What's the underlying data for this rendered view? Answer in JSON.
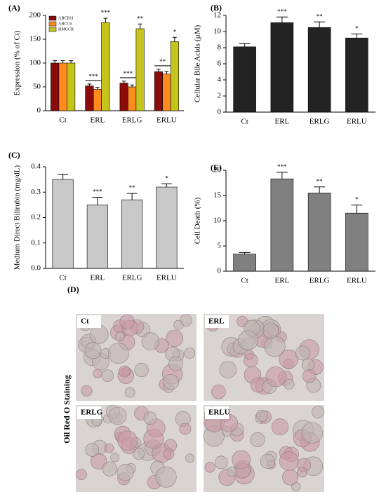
{
  "chart_data": [
    {
      "type": "bar",
      "title": "(A)",
      "ylabel": "Expression (% of Ct)",
      "categories": [
        "Ct",
        "ERL",
        "ERLG",
        "ERLU"
      ],
      "series": [
        {
          "name": "ABCB11",
          "color": "#8b0a0a",
          "values": [
            100,
            52,
            58,
            82
          ],
          "errors": [
            5,
            4,
            4,
            5
          ],
          "stars": [
            null,
            "***",
            "***",
            "**"
          ]
        },
        {
          "name": "ABCC6",
          "color": "#ff8a1e",
          "values": [
            100,
            45,
            50,
            77
          ],
          "errors": [
            5,
            4,
            4,
            5
          ]
        },
        {
          "name": "HMGCR",
          "color": "#c4c41c",
          "values": [
            100,
            185,
            172,
            145
          ],
          "errors": [
            5,
            9,
            10,
            9
          ],
          "stars": [
            null,
            "***",
            "**",
            "*"
          ]
        }
      ],
      "ylim": [
        0,
        200
      ],
      "yticks": [
        0,
        50,
        100,
        150,
        200
      ]
    },
    {
      "type": "bar",
      "title": "(B)",
      "ylabel": "Cellular Bile Acids (µM)",
      "categories": [
        "Ct",
        "ERL",
        "ERLG",
        "ERLU"
      ],
      "series": [
        {
          "color": "#232323",
          "values": [
            8.1,
            11.1,
            10.5,
            9.2
          ],
          "errors": [
            0.4,
            0.7,
            0.7,
            0.5
          ],
          "stars": [
            null,
            "***",
            "**",
            "*"
          ]
        }
      ],
      "ylim": [
        0,
        12
      ],
      "yticks": [
        0,
        2,
        4,
        6,
        8,
        10,
        12
      ]
    },
    {
      "type": "bar",
      "title": "(C)",
      "ylabel": "Medium Direct Bilirubin (mg/dL)",
      "categories": [
        "Ct",
        "ERL",
        "ERLG",
        "ERLU"
      ],
      "series": [
        {
          "color": "#c8c8c8",
          "values": [
            0.35,
            0.25,
            0.27,
            0.32
          ],
          "errors": [
            0.02,
            0.03,
            0.025,
            0.013
          ],
          "stars": [
            null,
            "***",
            "**",
            "*"
          ]
        }
      ],
      "ylim": [
        0,
        0.4
      ],
      "yticks": [
        {
          "value": 0,
          "label": "0.0"
        },
        0.1,
        0.2,
        0.3,
        0.4
      ]
    },
    {
      "type": "bar",
      "title": "(E)",
      "ylabel": "Cell Death (%)",
      "categories": [
        "Ct",
        "ERL",
        "ERLG",
        "ERLU"
      ],
      "series": [
        {
          "color": "#808080",
          "values": [
            3.4,
            18.3,
            15.5,
            11.5
          ],
          "errors": [
            0.3,
            1.3,
            1.2,
            1.6
          ],
          "stars": [
            null,
            "***",
            "**",
            "*"
          ]
        }
      ],
      "ylim": [
        0,
        20
      ],
      "yticks": [
        0,
        5,
        10,
        15,
        20
      ]
    }
  ],
  "figure_d": {
    "title": "(D)",
    "ylabel": "Oil Red O Staining",
    "panels": [
      "Ct",
      "ERL",
      "ERLG",
      "ERLU"
    ]
  }
}
